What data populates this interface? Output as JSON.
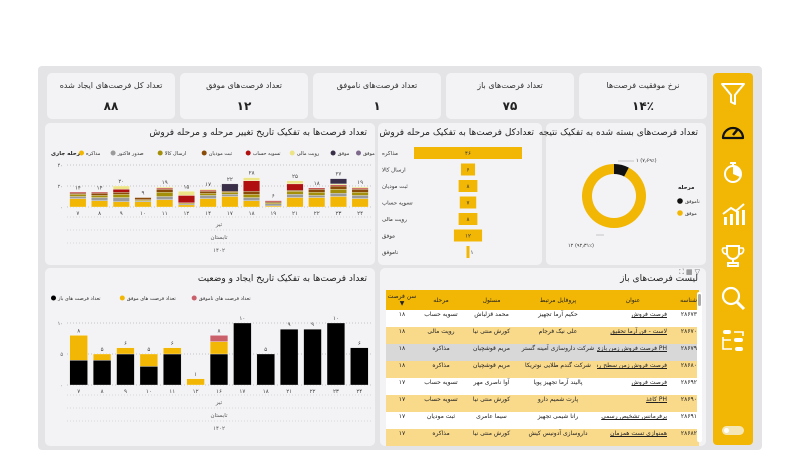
{
  "kpis": [
    {
      "title": "نرخ موفقیت فرصت‌ها",
      "value": "۱۴٪"
    },
    {
      "title": "تعداد فرصت‌های باز",
      "value": "۷۵"
    },
    {
      "title": "تعداد فرصت‌های ناموفق",
      "value": "۱"
    },
    {
      "title": "تعداد فرصت‌های موفق",
      "value": "۱۲"
    },
    {
      "title": "تعداد کل فرصت‌های ایجاد شده",
      "value": "۸۸"
    }
  ],
  "colors": {
    "accent": "#f2b705",
    "panel": "#f3f3f5",
    "frame": "#e4e4e6"
  },
  "sidebar": {
    "icons": [
      "filter-icon",
      "gauge-icon",
      "stopwatch-icon",
      "growth-chart-icon",
      "trophy-icon",
      "search-icon",
      "workflow-icon"
    ],
    "toggle": "theme-toggle"
  },
  "chart_data": [
    {
      "type": "bar",
      "stacked": true,
      "title": "تعداد فرصت‌ها به تفکیک تاریخ تغییر مرحله و مرحله فروش",
      "legend_title": "مرحله جاری",
      "legend_position": "top-left",
      "categories": [
        "۷",
        "۸",
        "۹",
        "۱۰",
        "۱۱",
        "۱۲",
        "۱۴",
        "۱۷",
        "۱۸",
        "۱۹",
        "۲۱",
        "۲۲",
        "۲۳",
        "۲۴"
      ],
      "x_hierarchy": [
        "تیر",
        "تابستان",
        "۱۴۰۲"
      ],
      "ylim": [
        0,
        40
      ],
      "yticks": [
        "۰",
        "۲۰",
        "۴۰"
      ],
      "ytick_values": [
        0,
        20,
        40
      ],
      "grid": true,
      "totals": [
        14,
        14,
        20,
        9,
        19,
        15,
        17,
        22,
        28,
        6,
        25,
        18,
        27,
        19
      ],
      "series": [
        {
          "name": "مذاکره",
          "color": "#f2b705",
          "values": [
            8,
            6,
            5,
            5,
            7,
            2,
            8,
            10,
            6,
            1,
            9,
            9,
            10,
            8
          ]
        },
        {
          "name": "صدور فاکتور",
          "color": "#9b9b9b",
          "values": [
            2,
            3,
            4,
            1,
            3,
            1,
            3,
            2,
            3,
            2,
            3,
            2,
            3,
            3
          ]
        },
        {
          "name": "ارسال کالا",
          "color": "#a48f0a",
          "values": [
            2,
            2,
            3,
            1,
            4,
            1,
            2,
            2,
            3,
            1,
            3,
            3,
            4,
            3
          ]
        },
        {
          "name": "ثبت مودیان",
          "color": "#8a4b08",
          "values": [
            1,
            2,
            2,
            2,
            3,
            0,
            2,
            1,
            3,
            1,
            1,
            3,
            3,
            3
          ]
        },
        {
          "name": "تسویه حساب",
          "color": "#b01010",
          "values": [
            1,
            1,
            3,
            0,
            1,
            7,
            1,
            0,
            10,
            1,
            6,
            1,
            1,
            1
          ]
        },
        {
          "name": "رویت مالی",
          "color": "#ece487",
          "values": [
            0,
            0,
            3,
            0,
            1,
            4,
            1,
            0,
            3,
            0,
            3,
            0,
            1,
            1
          ]
        },
        {
          "name": "موفق",
          "color": "#3a2f48",
          "values": [
            0,
            0,
            0,
            0,
            0,
            0,
            0,
            7,
            0,
            0,
            0,
            0,
            5,
            0
          ]
        },
        {
          "name": "ناموفق",
          "color": "#7f6a8e",
          "values": [
            0,
            0,
            0,
            0,
            0,
            0,
            0,
            0,
            0,
            0,
            0,
            0,
            0,
            0
          ]
        }
      ]
    },
    {
      "type": "bar",
      "orientation": "funnel",
      "title": "تعدادکل فرصت‌ها به تفکیک مرحله فروش",
      "categories": [
        "مذاکره",
        "ارسال کالا",
        "ثبت مودیان",
        "تسویه حساب",
        "رویت مالی",
        "موفق",
        "ناموفق"
      ],
      "values": [
        46,
        6,
        8,
        7,
        8,
        12,
        1
      ],
      "labels": [
        "۴۶",
        "۶",
        "۸",
        "۷",
        "۸",
        "۱۲",
        "۱"
      ],
      "color": "#f2b705"
    },
    {
      "type": "pie",
      "donut": true,
      "title": "تعداد فرصت‌های بسته شده به تفکیک نتیجه",
      "legend_title": "مرحله",
      "legend_position": "right",
      "slices": [
        {
          "name": "ناموفق",
          "value": 1,
          "label": "۱ (۷٫۶۹٪)",
          "color": "#111111"
        },
        {
          "name": "موفق",
          "value": 12,
          "label": "۱۲ (۹۲٫۳۱٪)",
          "color": "#f2b705"
        }
      ]
    },
    {
      "type": "bar",
      "stacked": true,
      "title": "تعداد فرصت‌ها به تفکیک تاریخ ایجاد و وضعیت",
      "legend_position": "top-left",
      "categories": [
        "۷",
        "۸",
        "۹",
        "۱۰",
        "۱۱",
        "۱۲",
        "۱۶",
        "۱۷",
        "۱۸",
        "۲۱",
        "۲۲",
        "۲۳",
        "۲۴"
      ],
      "x_hierarchy": [
        "تیر",
        "تابستان",
        "۱۴۰۲"
      ],
      "ylim": [
        0,
        10
      ],
      "yticks": [
        "۰",
        "۵",
        "۱۰"
      ],
      "ytick_values": [
        0,
        5,
        10
      ],
      "grid": true,
      "totals": [
        8,
        5,
        6,
        5,
        6,
        1,
        8,
        10,
        5,
        9,
        9,
        10,
        6
      ],
      "series": [
        {
          "name": "تعداد فرصت های باز",
          "color": "#000000",
          "values": [
            4,
            4,
            5,
            3,
            5,
            0,
            5,
            10,
            5,
            9,
            9,
            10,
            6
          ]
        },
        {
          "name": "تعداد فرصت های موفق",
          "color": "#f2b705",
          "values": [
            4,
            1,
            1,
            2,
            1,
            1,
            2,
            0,
            0,
            0,
            0,
            0,
            0
          ]
        },
        {
          "name": "تعداد فرصت های ناموفق",
          "color": "#c9606a",
          "values": [
            0,
            0,
            0,
            0,
            0,
            0,
            1,
            0,
            0,
            0,
            0,
            0,
            0
          ]
        }
      ]
    }
  ],
  "open_table": {
    "title": "لیست فرصت‌های باز",
    "columns": [
      "شناسه",
      "عنوان",
      "پروفایل مرتبط",
      "مسئول",
      "مرحله",
      "سن فرصت"
    ],
    "sort_indicator": "▼",
    "rows": [
      [
        "۲۸۶۷۳",
        "فرصت فروش",
        "حکیم آرما تجهیز",
        "محمد قزلباش",
        "تسویه حساب",
        "۱۸"
      ],
      [
        "۲۸۶۷۰",
        "لاست - فن آرما تحقیق",
        "علی نیک فرجام",
        "کورش منتی نیا",
        "رویت مالی",
        "۱۸"
      ],
      [
        "۲۸۶۷۹",
        "PH فرصت فروش زمن بازی مدیریتی رسمی",
        "شرکت داروسازی آمینه گستر",
        "مریم قوشچیان",
        "مذاکره",
        "۱۸"
      ],
      [
        "۲۸۶۸۰",
        "فرصت فروش زمن سطح رسمی ایرانی",
        "شرکت گندم طلایی نوتریکا",
        "مریم قوشچیان",
        "مذاکره",
        "۱۸"
      ],
      [
        "۲۸۶۹۲",
        "فرصت فروش",
        "پالیند آرما تجهیز پویا",
        "آوا ناصری مهر",
        "تسویه حساب",
        "۱۷"
      ],
      [
        "۲۸۶۹۰",
        "PH کاغذ",
        "پارت شمیم دارو",
        "کورش منتی نیا",
        "تسویه حساب",
        "۱۷"
      ],
      [
        "۲۸۶۹۱",
        "پرفرمانس تشخیص رسمی",
        "رانا شیمی تجهیز",
        "سیما عامری",
        "ثبت مودیان",
        "۱۷"
      ],
      [
        "۲۸۶۸۲",
        "همنوازی تست همزمان",
        "داروسازی آدونیس کیش",
        "کورش منتی نیا",
        "مذاکره",
        "۱۷"
      ]
    ]
  }
}
